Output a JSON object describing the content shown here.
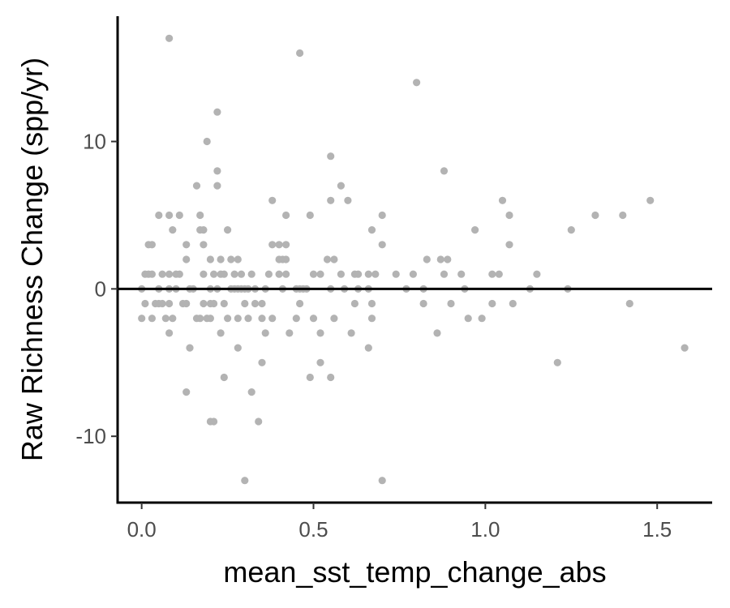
{
  "chart_data": {
    "type": "scatter",
    "title": "",
    "xlabel": "mean_sst_temp_change_abs",
    "ylabel": "Raw Richness Change (spp/yr)",
    "xlim": [
      -0.07,
      1.66
    ],
    "ylim": [
      -14.5,
      18.5
    ],
    "x_ticks": [
      0.0,
      0.5,
      1.0,
      1.5
    ],
    "x_tick_labels": [
      "0.0",
      "0.5",
      "1.0",
      "1.5"
    ],
    "y_ticks": [
      -10,
      0,
      10
    ],
    "y_tick_labels": [
      "-10",
      "0",
      "10"
    ],
    "reference_line_y": 0,
    "grid": false,
    "point_color": "#b3b3b3",
    "axis_color": "#000000",
    "tick_label_color": "#4d4d4d",
    "points": [
      [
        0.08,
        17
      ],
      [
        0.46,
        16
      ],
      [
        0.8,
        14
      ],
      [
        0.22,
        12
      ],
      [
        0.19,
        10
      ],
      [
        0.55,
        9
      ],
      [
        0.22,
        8
      ],
      [
        0.88,
        8
      ],
      [
        0.16,
        7
      ],
      [
        0.22,
        7
      ],
      [
        0.58,
        7
      ],
      [
        0.38,
        6
      ],
      [
        0.55,
        6
      ],
      [
        0.6,
        6
      ],
      [
        1.05,
        6
      ],
      [
        1.48,
        6
      ],
      [
        0.05,
        5
      ],
      [
        0.08,
        5
      ],
      [
        0.11,
        5
      ],
      [
        0.17,
        5
      ],
      [
        0.42,
        5
      ],
      [
        0.49,
        5
      ],
      [
        0.7,
        5
      ],
      [
        1.07,
        5
      ],
      [
        1.32,
        5
      ],
      [
        1.4,
        5
      ],
      [
        0.09,
        4
      ],
      [
        0.17,
        4
      ],
      [
        0.18,
        4
      ],
      [
        0.25,
        4
      ],
      [
        0.67,
        4
      ],
      [
        0.97,
        4
      ],
      [
        1.25,
        4
      ],
      [
        0.02,
        3
      ],
      [
        0.03,
        3
      ],
      [
        0.13,
        3
      ],
      [
        0.18,
        3
      ],
      [
        0.38,
        3
      ],
      [
        0.4,
        3
      ],
      [
        0.42,
        3
      ],
      [
        0.7,
        3
      ],
      [
        1.07,
        3
      ],
      [
        0.13,
        2
      ],
      [
        0.2,
        2
      ],
      [
        0.23,
        2
      ],
      [
        0.26,
        2
      ],
      [
        0.28,
        2
      ],
      [
        0.4,
        2
      ],
      [
        0.41,
        2
      ],
      [
        0.42,
        2
      ],
      [
        0.54,
        2
      ],
      [
        0.56,
        2
      ],
      [
        0.83,
        2
      ],
      [
        0.87,
        2
      ],
      [
        0.89,
        2
      ],
      [
        0.01,
        1
      ],
      [
        0.02,
        1
      ],
      [
        0.03,
        1
      ],
      [
        0.06,
        1
      ],
      [
        0.08,
        1
      ],
      [
        0.1,
        1
      ],
      [
        0.11,
        1
      ],
      [
        0.18,
        1
      ],
      [
        0.21,
        1
      ],
      [
        0.23,
        1
      ],
      [
        0.24,
        1
      ],
      [
        0.27,
        1
      ],
      [
        0.29,
        1
      ],
      [
        0.32,
        1
      ],
      [
        0.37,
        1
      ],
      [
        0.4,
        1
      ],
      [
        0.42,
        1
      ],
      [
        0.5,
        1
      ],
      [
        0.52,
        1
      ],
      [
        0.58,
        1
      ],
      [
        0.62,
        1
      ],
      [
        0.63,
        1
      ],
      [
        0.66,
        1
      ],
      [
        0.68,
        1
      ],
      [
        0.74,
        1
      ],
      [
        0.79,
        1
      ],
      [
        0.88,
        1
      ],
      [
        0.93,
        1
      ],
      [
        1.02,
        1
      ],
      [
        1.04,
        1
      ],
      [
        1.15,
        1
      ],
      [
        0.0,
        0
      ],
      [
        0.05,
        0
      ],
      [
        0.08,
        0
      ],
      [
        0.1,
        0
      ],
      [
        0.14,
        0
      ],
      [
        0.15,
        0
      ],
      [
        0.2,
        0
      ],
      [
        0.22,
        0
      ],
      [
        0.26,
        0
      ],
      [
        0.27,
        0
      ],
      [
        0.28,
        0
      ],
      [
        0.29,
        0
      ],
      [
        0.3,
        0
      ],
      [
        0.31,
        0
      ],
      [
        0.33,
        0
      ],
      [
        0.36,
        0
      ],
      [
        0.41,
        0
      ],
      [
        0.45,
        0
      ],
      [
        0.46,
        0
      ],
      [
        0.47,
        0
      ],
      [
        0.48,
        0
      ],
      [
        0.55,
        0
      ],
      [
        0.59,
        0
      ],
      [
        0.63,
        0
      ],
      [
        0.66,
        0
      ],
      [
        0.77,
        0
      ],
      [
        0.82,
        0
      ],
      [
        0.94,
        0
      ],
      [
        1.13,
        0
      ],
      [
        1.24,
        0
      ],
      [
        0.01,
        -1
      ],
      [
        0.04,
        -1
      ],
      [
        0.05,
        -1
      ],
      [
        0.06,
        -1
      ],
      [
        0.08,
        -1
      ],
      [
        0.12,
        -1
      ],
      [
        0.13,
        -1
      ],
      [
        0.18,
        -1
      ],
      [
        0.2,
        -1
      ],
      [
        0.21,
        -1
      ],
      [
        0.24,
        -1
      ],
      [
        0.3,
        -1
      ],
      [
        0.33,
        -1
      ],
      [
        0.35,
        -1
      ],
      [
        0.46,
        -1
      ],
      [
        0.62,
        -1
      ],
      [
        0.67,
        -1
      ],
      [
        0.82,
        -1
      ],
      [
        0.9,
        -1
      ],
      [
        1.02,
        -1
      ],
      [
        1.08,
        -1
      ],
      [
        1.42,
        -1
      ],
      [
        0.0,
        -2
      ],
      [
        0.03,
        -2
      ],
      [
        0.07,
        -2
      ],
      [
        0.09,
        -2
      ],
      [
        0.16,
        -2
      ],
      [
        0.17,
        -2
      ],
      [
        0.19,
        -2
      ],
      [
        0.2,
        -2
      ],
      [
        0.25,
        -2
      ],
      [
        0.28,
        -2
      ],
      [
        0.31,
        -2
      ],
      [
        0.35,
        -2
      ],
      [
        0.38,
        -2
      ],
      [
        0.45,
        -2
      ],
      [
        0.5,
        -2
      ],
      [
        0.56,
        -2
      ],
      [
        0.67,
        -2
      ],
      [
        0.95,
        -2
      ],
      [
        0.99,
        -2
      ],
      [
        0.08,
        -3
      ],
      [
        0.23,
        -3
      ],
      [
        0.36,
        -3
      ],
      [
        0.43,
        -3
      ],
      [
        0.52,
        -3
      ],
      [
        0.61,
        -3
      ],
      [
        0.86,
        -3
      ],
      [
        0.14,
        -4
      ],
      [
        0.28,
        -4
      ],
      [
        0.66,
        -4
      ],
      [
        1.58,
        -4
      ],
      [
        0.35,
        -5
      ],
      [
        0.52,
        -5
      ],
      [
        1.21,
        -5
      ],
      [
        0.24,
        -6
      ],
      [
        0.49,
        -6
      ],
      [
        0.55,
        -6
      ],
      [
        0.13,
        -7
      ],
      [
        0.32,
        -7
      ],
      [
        0.2,
        -9
      ],
      [
        0.21,
        -9
      ],
      [
        0.34,
        -9
      ],
      [
        0.3,
        -13
      ],
      [
        0.7,
        -13
      ]
    ]
  }
}
